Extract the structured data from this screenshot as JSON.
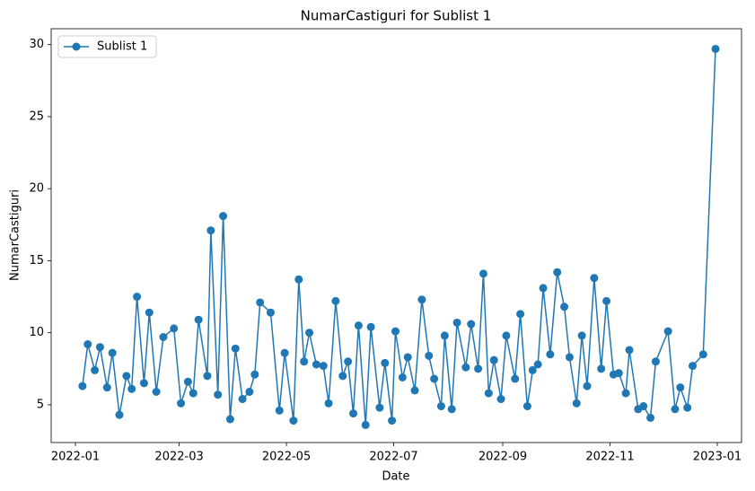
{
  "chart_data": {
    "type": "line",
    "title": "NumarCastiguri for Sublist 1",
    "xlabel": "Date",
    "ylabel": "NumarCastiguri",
    "x": [
      4,
      7,
      11,
      14,
      18,
      21,
      25,
      29,
      32,
      35,
      39,
      42,
      46,
      50,
      56,
      60,
      64,
      67,
      70,
      75,
      77,
      81,
      84,
      88,
      91,
      95,
      99,
      102,
      105,
      111,
      116,
      119,
      124,
      127,
      130,
      133,
      137,
      141,
      144,
      148,
      152,
      155,
      158,
      161,
      165,
      168,
      173,
      176,
      180,
      182,
      186,
      189,
      193,
      197,
      201,
      204,
      208,
      210,
      214,
      217,
      222,
      225,
      229,
      232,
      235,
      238,
      242,
      245,
      250,
      253,
      257,
      260,
      263,
      266,
      270,
      274,
      278,
      281,
      285,
      288,
      291,
      295,
      299,
      302,
      306,
      309,
      313,
      315,
      320,
      323,
      327,
      330,
      337,
      341,
      344,
      348,
      351,
      357,
      364
    ],
    "series": [
      {
        "name": "Sublist 1",
        "color": "#1f77b4",
        "values": [
          6.3,
          9.2,
          7.4,
          9.0,
          6.2,
          8.6,
          4.3,
          7.0,
          6.1,
          12.5,
          6.5,
          11.4,
          5.9,
          9.7,
          10.3,
          5.1,
          6.6,
          5.8,
          10.9,
          7.0,
          17.1,
          5.7,
          18.1,
          4.0,
          8.9,
          5.4,
          5.9,
          7.1,
          12.1,
          11.4,
          4.6,
          8.6,
          3.9,
          13.7,
          8.0,
          10.0,
          7.8,
          7.7,
          5.1,
          12.2,
          7.0,
          8.0,
          4.4,
          10.5,
          3.6,
          10.4,
          4.8,
          7.9,
          3.9,
          10.1,
          6.9,
          8.3,
          6.0,
          12.3,
          8.4,
          6.8,
          4.9,
          9.8,
          4.7,
          10.7,
          7.6,
          10.6,
          7.5,
          14.1,
          5.8,
          8.1,
          5.4,
          9.8,
          6.8,
          11.3,
          4.9,
          7.4,
          7.8,
          13.1,
          8.5,
          14.2,
          11.8,
          8.3,
          5.1,
          9.8,
          6.3,
          13.8,
          7.5,
          12.2,
          7.1,
          7.2,
          5.8,
          8.8,
          4.7,
          4.9,
          4.1,
          8.0,
          10.1,
          4.7,
          6.2,
          4.8,
          7.7,
          8.5,
          29.7
        ]
      }
    ],
    "xlim": [
      -13.8,
      378.8
    ],
    "xticks": [
      {
        "value": 0,
        "label": "2022-01"
      },
      {
        "value": 59,
        "label": "2022-03"
      },
      {
        "value": 120,
        "label": "2022-05"
      },
      {
        "value": 181,
        "label": "2022-07"
      },
      {
        "value": 243,
        "label": "2022-09"
      },
      {
        "value": 304,
        "label": "2022-11"
      },
      {
        "value": 365,
        "label": "2023-01"
      }
    ],
    "ylim": [
      2.38,
      31.1
    ],
    "yticks": [
      5,
      10,
      15,
      20,
      25,
      30
    ],
    "legend": "upper left",
    "marker": "circle",
    "grid": false
  }
}
